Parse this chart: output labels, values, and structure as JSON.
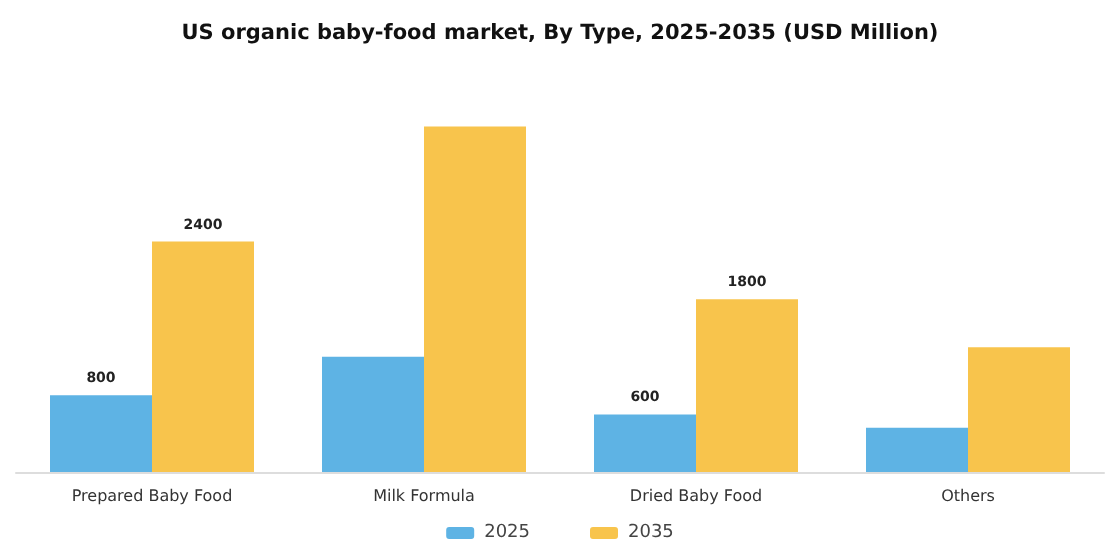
{
  "chart_data": {
    "type": "bar",
    "title": "US organic baby-food market, By Type, 2025-2035 (USD Million)",
    "categories": [
      "Prepared Baby Food",
      "Milk Formula",
      "Dried Baby Food",
      "Others"
    ],
    "series": [
      {
        "name": "2025",
        "color": "#5eb3e4",
        "values": [
          800,
          1200,
          600,
          460
        ],
        "value_labels": [
          "800",
          null,
          "600",
          null
        ]
      },
      {
        "name": "2035",
        "color": "#f8c44c",
        "values": [
          2400,
          3600,
          1800,
          1300
        ],
        "value_labels": [
          "2400",
          null,
          "1800",
          null
        ]
      }
    ],
    "legend": "bottom"
  }
}
